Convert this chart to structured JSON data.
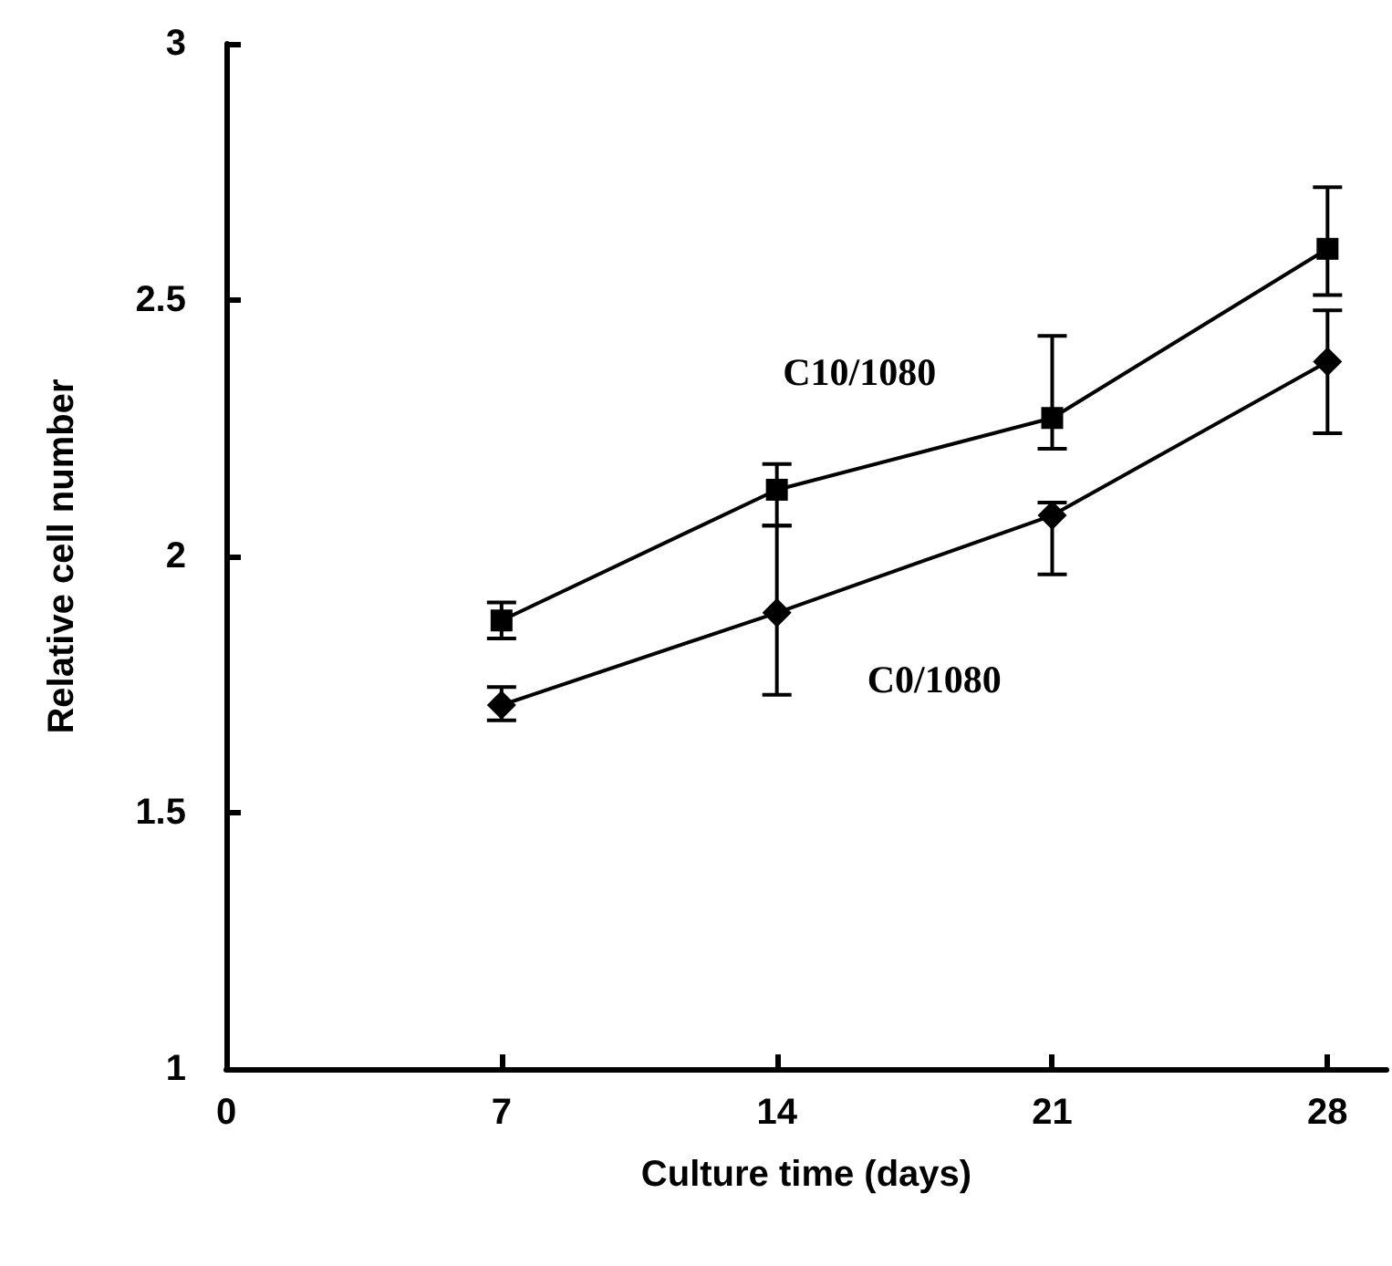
{
  "chart_data": {
    "type": "line",
    "xlabel": "Culture time (days)",
    "ylabel": "Relative cell number",
    "x": [
      7,
      14,
      21,
      28
    ],
    "xlim": [
      0,
      29.5
    ],
    "xticks": [
      0,
      7,
      14,
      21,
      28
    ],
    "ylim": [
      1,
      3
    ],
    "yticks": [
      1,
      1.5,
      2,
      2.5,
      3
    ],
    "grid": false,
    "legend": false,
    "line_style": "solid",
    "series": [
      {
        "name": "C10/1080",
        "color": "#000000",
        "marker": "square",
        "values": [
          1.875,
          2.13,
          2.27,
          2.6
        ],
        "errors": [
          [
            1.84,
            1.91
          ],
          [
            2.06,
            2.18
          ],
          [
            2.21,
            2.43
          ],
          [
            2.51,
            2.72
          ]
        ]
      },
      {
        "name": "C0/1080",
        "color": "#000000",
        "marker": "diamond",
        "values": [
          1.71,
          1.89,
          2.08,
          2.38
        ],
        "errors": [
          [
            1.68,
            1.745
          ],
          [
            1.73,
            2.06
          ],
          [
            1.965,
            2.105
          ],
          [
            2.24,
            2.48
          ]
        ]
      }
    ]
  }
}
